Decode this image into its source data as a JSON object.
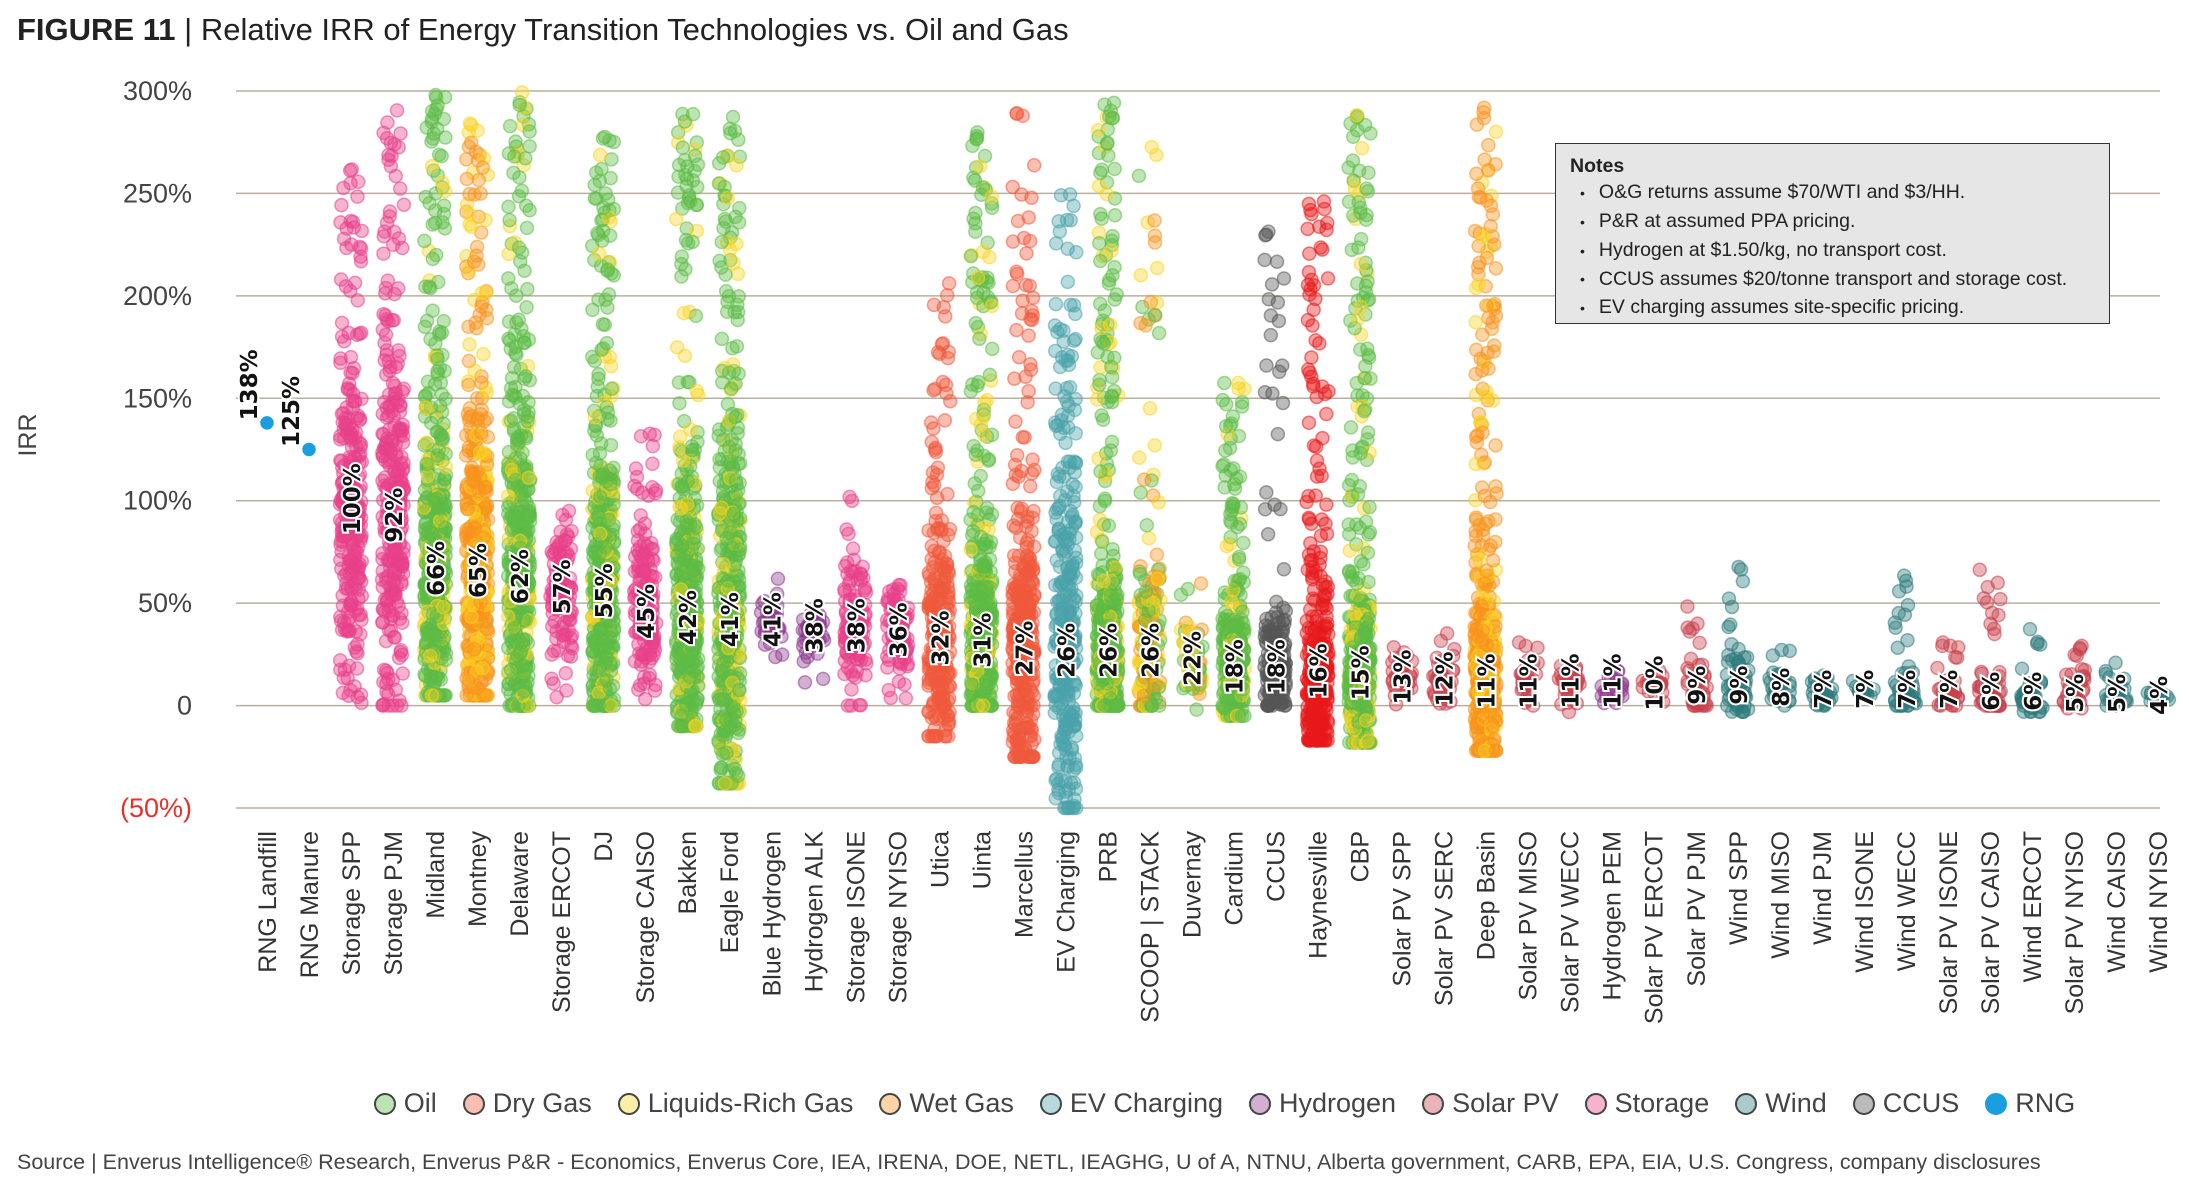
{
  "title": {
    "figure": "FIGURE 11",
    "separator": "|",
    "text": "Relative IRR of Energy Transition Technologies vs. Oil and Gas"
  },
  "notes": {
    "heading": "Notes",
    "items": [
      "O&G returns assume $70/WTI and $3/HH.",
      "P&R at assumed PPA pricing.",
      "Hydrogen at $1.50/kg, no transport cost.",
      "CCUS assumes $20/tonne transport and storage cost.",
      "EV charging assumes site-specific pricing."
    ]
  },
  "source": "Source | Enverus Intelligence® Research, Enverus P&R - Economics, Enverus Core, IEA, IRENA, DOE, NETL, IEAGHG, U of A, NTNU, Alberta government, CARB, EPA, EIA, U.S. Congress, company disclosures",
  "chart_data": {
    "type": "scatter",
    "subtype": "strip plot with median labels",
    "ylabel": "IRR",
    "ylim": [
      -50,
      300
    ],
    "yticks": [
      {
        "value": 300,
        "label": "300%"
      },
      {
        "value": 250,
        "label": "250%"
      },
      {
        "value": 200,
        "label": "200%"
      },
      {
        "value": 150,
        "label": "150%"
      },
      {
        "value": 100,
        "label": "100%"
      },
      {
        "value": 50,
        "label": "50%"
      },
      {
        "value": 0,
        "label": "0"
      },
      {
        "value": -50,
        "label": "(50%)",
        "color": "#e8302a"
      }
    ],
    "grid": true,
    "legend_position": "bottom",
    "groups": [
      {
        "name": "Oil",
        "color": "#5dbb46"
      },
      {
        "name": "Dry Gas",
        "color": "#f05a3c"
      },
      {
        "name": "Liquids-Rich Gas",
        "color": "#f9d423"
      },
      {
        "name": "Wet Gas",
        "color": "#f7941d"
      },
      {
        "name": "EV Charging",
        "color": "#4aa3ab"
      },
      {
        "name": "Hydrogen",
        "color": "#8e3a8e"
      },
      {
        "name": "Solar PV",
        "color": "#c8404a"
      },
      {
        "name": "Storage",
        "color": "#e8408a"
      },
      {
        "name": "Wind",
        "color": "#2e7a7c"
      },
      {
        "name": "CCUS",
        "color": "#555555"
      },
      {
        "name": "RNG",
        "color": "#1a9ee0"
      }
    ],
    "categories": [
      {
        "name": "RNG Landfill",
        "group": "RNG",
        "median": 138,
        "label": "138%",
        "range": [
          138,
          138
        ]
      },
      {
        "name": "RNG Manure",
        "group": "RNG",
        "median": 125,
        "label": "125%",
        "range": [
          125,
          125
        ]
      },
      {
        "name": "Storage SPP",
        "group": "Storage",
        "median": 100,
        "label": "100%",
        "range": [
          0,
          262
        ]
      },
      {
        "name": "Storage PJM",
        "group": "Storage",
        "median": 92,
        "label": "92%",
        "range": [
          0,
          292
        ]
      },
      {
        "name": "Midland",
        "group": "Oil",
        "median": 66,
        "label": "66%",
        "range": [
          5,
          300
        ]
      },
      {
        "name": "Montney",
        "group": "Wet Gas",
        "median": 65,
        "label": "65%",
        "range": [
          5,
          285
        ]
      },
      {
        "name": "Delaware",
        "group": "Oil",
        "median": 62,
        "label": "62%",
        "range": [
          0,
          300
        ]
      },
      {
        "name": "Storage ERCOT",
        "group": "Storage",
        "median": 57,
        "label": "57%",
        "range": [
          0,
          95
        ]
      },
      {
        "name": "DJ",
        "group": "Oil",
        "median": 55,
        "label": "55%",
        "range": [
          0,
          278
        ]
      },
      {
        "name": "Storage CAISO",
        "group": "Storage",
        "median": 45,
        "label": "45%",
        "range": [
          0,
          133
        ]
      },
      {
        "name": "Bakken",
        "group": "Oil",
        "median": 42,
        "label": "42%",
        "range": [
          -10,
          292
        ]
      },
      {
        "name": "Eagle Ford",
        "group": "Oil",
        "median": 41,
        "label": "41%",
        "range": [
          -38,
          290
        ]
      },
      {
        "name": "Blue Hydrogen",
        "group": "Hydrogen",
        "median": 41,
        "label": "41%",
        "range": [
          20,
          63
        ]
      },
      {
        "name": "Hydrogen ALK",
        "group": "Hydrogen",
        "median": 38,
        "label": "38%",
        "range": [
          0,
          45
        ]
      },
      {
        "name": "Storage ISONE",
        "group": "Storage",
        "median": 38,
        "label": "38%",
        "range": [
          0,
          106
        ]
      },
      {
        "name": "Storage NYISO",
        "group": "Storage",
        "median": 36,
        "label": "36%",
        "range": [
          0,
          64
        ]
      },
      {
        "name": "Utica",
        "group": "Dry Gas",
        "median": 32,
        "label": "32%",
        "range": [
          -15,
          220
        ]
      },
      {
        "name": "Uinta",
        "group": "Oil",
        "median": 31,
        "label": "31%",
        "range": [
          0,
          280
        ]
      },
      {
        "name": "Marcellus",
        "group": "Dry Gas",
        "median": 27,
        "label": "27%",
        "range": [
          -25,
          290
        ]
      },
      {
        "name": "EV Charging",
        "group": "EV Charging",
        "median": 26,
        "label": "26%",
        "range": [
          -50,
          250
        ]
      },
      {
        "name": "PRB",
        "group": "Oil",
        "median": 26,
        "label": "26%",
        "range": [
          0,
          296
        ]
      },
      {
        "name": "SCOOP | STACK",
        "group": "Liquids-Rich Gas",
        "median": 26,
        "label": "26%",
        "range": [
          0,
          276
        ]
      },
      {
        "name": "Duvernay",
        "group": "Liquids-Rich Gas",
        "median": 22,
        "label": "22%",
        "range": [
          -8,
          60
        ]
      },
      {
        "name": "Cardium",
        "group": "Oil",
        "median": 18,
        "label": "18%",
        "range": [
          -5,
          161
        ]
      },
      {
        "name": "CCUS",
        "group": "CCUS",
        "median": 18,
        "label": "18%",
        "range": [
          0,
          235
        ]
      },
      {
        "name": "Haynesville",
        "group": "Dry Gas",
        "median": 16,
        "label": "16%",
        "range": [
          -17,
          248
        ]
      },
      {
        "name": "CBP",
        "group": "Oil",
        "median": 15,
        "label": "15%",
        "range": [
          -18,
          290
        ]
      },
      {
        "name": "Solar PV SPP",
        "group": "Solar PV",
        "median": 13,
        "label": "13%",
        "range": [
          0,
          30
        ]
      },
      {
        "name": "Solar PV SERC",
        "group": "Solar PV",
        "median": 12,
        "label": "12%",
        "range": [
          0,
          40
        ]
      },
      {
        "name": "Deep Basin",
        "group": "Wet Gas",
        "median": 11,
        "label": "11%",
        "range": [
          -22,
          296
        ]
      },
      {
        "name": "Solar PV MISO",
        "group": "Solar PV",
        "median": 11,
        "label": "11%",
        "range": [
          0,
          32
        ]
      },
      {
        "name": "Solar PV WECC",
        "group": "Solar PV",
        "median": 11,
        "label": "11%",
        "range": [
          -8,
          25
        ]
      },
      {
        "name": "Hydrogen PEM",
        "group": "Hydrogen",
        "median": 11,
        "label": "11%",
        "range": [
          0,
          17
        ]
      },
      {
        "name": "Solar PV ERCOT",
        "group": "Solar PV",
        "median": 10,
        "label": "10%",
        "range": [
          -5,
          17
        ]
      },
      {
        "name": "Solar PV PJM",
        "group": "Solar PV",
        "median": 9,
        "label": "9%",
        "range": [
          0,
          54
        ]
      },
      {
        "name": "Wind SPP",
        "group": "Wind",
        "median": 9,
        "label": "9%",
        "range": [
          -3,
          71
        ]
      },
      {
        "name": "Wind MISO",
        "group": "Wind",
        "median": 8,
        "label": "8%",
        "range": [
          0,
          30
        ]
      },
      {
        "name": "Wind PJM",
        "group": "Wind",
        "median": 7,
        "label": "7%",
        "range": [
          0,
          23
        ]
      },
      {
        "name": "Wind ISONE",
        "group": "Wind",
        "median": 7,
        "label": "7%",
        "range": [
          5,
          12
        ]
      },
      {
        "name": "Wind WECC",
        "group": "Wind",
        "median": 7,
        "label": "7%",
        "range": [
          0,
          66
        ]
      },
      {
        "name": "Solar PV ISONE",
        "group": "Solar PV",
        "median": 7,
        "label": "7%",
        "range": [
          0,
          34
        ]
      },
      {
        "name": "Solar PV CAISO",
        "group": "Solar PV",
        "median": 6,
        "label": "6%",
        "range": [
          0,
          68
        ]
      },
      {
        "name": "Wind ERCOT",
        "group": "Wind",
        "median": 6,
        "label": "6%",
        "range": [
          -3,
          40
        ]
      },
      {
        "name": "Solar PV NYISO",
        "group": "Solar PV",
        "median": 5,
        "label": "5%",
        "range": [
          -3,
          37
        ]
      },
      {
        "name": "Wind CAISO",
        "group": "Wind",
        "median": 5,
        "label": "5%",
        "range": [
          0,
          25
        ]
      },
      {
        "name": "Wind NYISO",
        "group": "Wind",
        "median": 4,
        "label": "4%",
        "range": [
          0,
          8
        ]
      }
    ]
  }
}
